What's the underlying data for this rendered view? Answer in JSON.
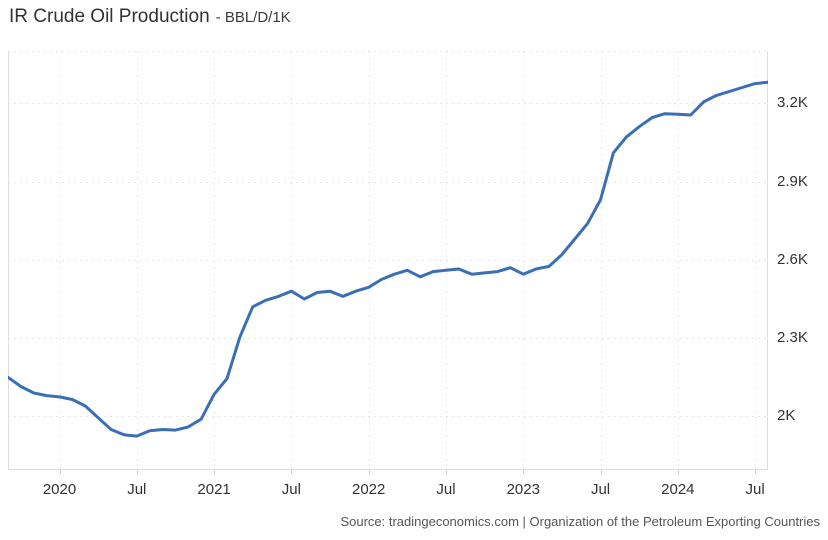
{
  "header": {
    "title": "IR Crude Oil Production",
    "subtitle": "- BBL/D/1K"
  },
  "footer": {
    "source": "Source: tradingeconomics.com | Organization of the Petroleum Exporting Countries"
  },
  "chart_data": {
    "type": "line",
    "title": "IR Crude Oil Production",
    "unit": "BBL/D/1K",
    "x": [
      "2019-09",
      "2019-10",
      "2019-11",
      "2019-12",
      "2020-01",
      "2020-02",
      "2020-03",
      "2020-04",
      "2020-05",
      "2020-06",
      "2020-07",
      "2020-08",
      "2020-09",
      "2020-10",
      "2020-11",
      "2020-12",
      "2021-01",
      "2021-02",
      "2021-03",
      "2021-04",
      "2021-05",
      "2021-06",
      "2021-07",
      "2021-08",
      "2021-09",
      "2021-10",
      "2021-11",
      "2021-12",
      "2022-01",
      "2022-02",
      "2022-03",
      "2022-04",
      "2022-05",
      "2022-06",
      "2022-07",
      "2022-08",
      "2022-09",
      "2022-10",
      "2022-11",
      "2022-12",
      "2023-01",
      "2023-02",
      "2023-03",
      "2023-04",
      "2023-05",
      "2023-06",
      "2023-07",
      "2023-08",
      "2023-09",
      "2023-10",
      "2023-11",
      "2023-12",
      "2024-01",
      "2024-02",
      "2024-03",
      "2024-04",
      "2024-05",
      "2024-06",
      "2024-07",
      "2024-08"
    ],
    "values": [
      2150,
      2115,
      2090,
      2080,
      2075,
      2065,
      2040,
      1995,
      1950,
      1930,
      1925,
      1945,
      1950,
      1948,
      1960,
      1990,
      2085,
      2145,
      2305,
      2420,
      2445,
      2460,
      2480,
      2450,
      2475,
      2480,
      2460,
      2480,
      2495,
      2525,
      2545,
      2560,
      2535,
      2555,
      2560,
      2565,
      2545,
      2550,
      2555,
      2570,
      2545,
      2565,
      2575,
      2620,
      2680,
      2740,
      2830,
      3010,
      3070,
      3110,
      3145,
      3160,
      3158,
      3155,
      3205,
      3230,
      3245,
      3260,
      3275,
      3280
    ],
    "ylim": [
      1795,
      3400
    ],
    "yticks": [
      {
        "value": 3200,
        "label": "3.2K"
      },
      {
        "value": 2900,
        "label": "2.9K"
      },
      {
        "value": 2600,
        "label": "2.6K"
      },
      {
        "value": 2300,
        "label": "2.3K"
      },
      {
        "value": 2000,
        "label": "2K"
      }
    ],
    "xticks": [
      {
        "label": "2020",
        "month_index": 4
      },
      {
        "label": "Jul",
        "month_index": 10
      },
      {
        "label": "2021",
        "month_index": 16
      },
      {
        "label": "Jul",
        "month_index": 22
      },
      {
        "label": "2022",
        "month_index": 28
      },
      {
        "label": "Jul",
        "month_index": 34
      },
      {
        "label": "2023",
        "month_index": 40
      },
      {
        "label": "Jul",
        "month_index": 46
      },
      {
        "label": "2024",
        "month_index": 52
      },
      {
        "label": "Jul",
        "month_index": 58
      }
    ],
    "legend": "none",
    "grid": "dotted",
    "colors": {
      "line": "#3a6fb8",
      "grid": "#e6e6e6",
      "border": "#dedede",
      "tick": "#cccccc",
      "axis_text": "#333333",
      "source_text": "#555555"
    }
  }
}
